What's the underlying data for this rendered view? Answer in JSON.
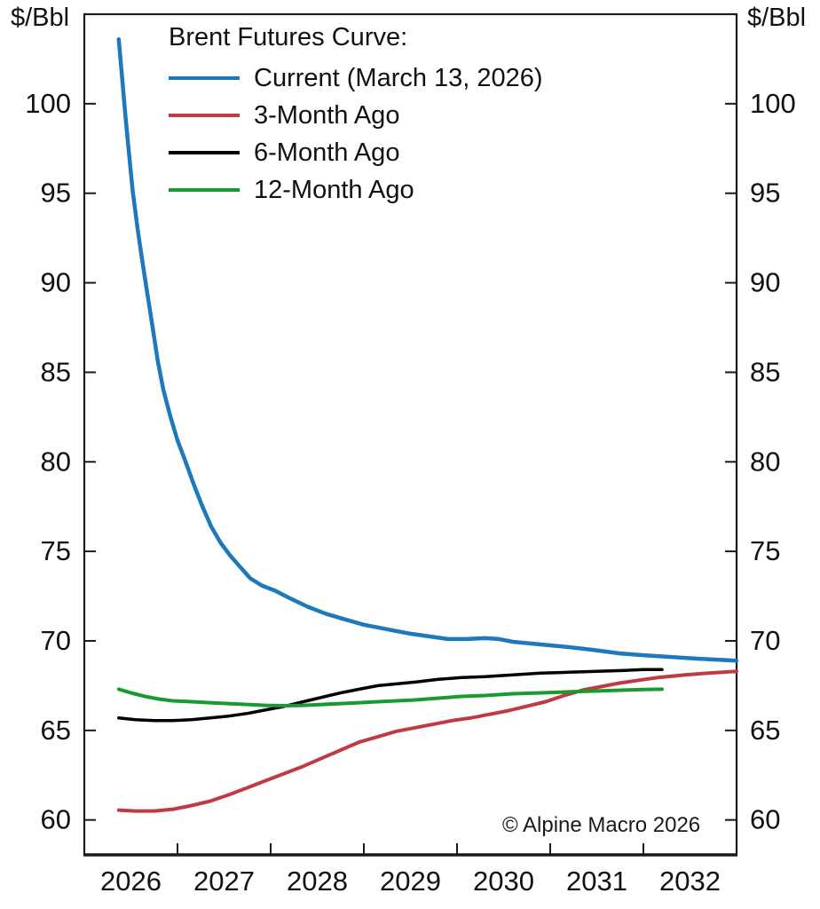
{
  "axes_units": {
    "left": "$/Bbl",
    "right": "$/Bbl"
  },
  "legend": {
    "title": "Brent Futures Curve:"
  },
  "watermark": "© Alpine Macro 2026",
  "chart_data": {
    "type": "line",
    "title": "Brent Futures Curve",
    "xlabel": "",
    "ylabel": "$/Bbl",
    "grid": false,
    "legend_position": "upper-left",
    "frame_color": "#1a1a1a",
    "x_axis": {
      "min": 2026,
      "max": 2033,
      "tick_years": [
        2027,
        2028,
        2029,
        2030,
        2031,
        2032
      ],
      "label_years": [
        "2026",
        "2027",
        "2028",
        "2029",
        "2030",
        "2031",
        "2032"
      ],
      "labels_centered_between_ticks": true
    },
    "y_axis": {
      "min": 58.05,
      "max": 105.0,
      "ticks": [
        60,
        65,
        70,
        75,
        80,
        85,
        90,
        95,
        100
      ],
      "ticks_on_both_sides": true
    },
    "series": [
      {
        "name": "Current (March 13, 2026)",
        "color": "#1d78bc",
        "width": 4.5,
        "points": [
          [
            2026.37,
            103.6
          ],
          [
            2026.4,
            101.8
          ],
          [
            2026.44,
            99.4
          ],
          [
            2026.48,
            97.2
          ],
          [
            2026.52,
            95.1
          ],
          [
            2026.57,
            93.1
          ],
          [
            2026.62,
            91.3
          ],
          [
            2026.67,
            89.6
          ],
          [
            2026.73,
            87.6
          ],
          [
            2026.79,
            85.6
          ],
          [
            2026.85,
            84.0
          ],
          [
            2026.92,
            82.6
          ],
          [
            2027.0,
            81.2
          ],
          [
            2027.08,
            80.1
          ],
          [
            2027.17,
            78.8
          ],
          [
            2027.26,
            77.6
          ],
          [
            2027.36,
            76.4
          ],
          [
            2027.46,
            75.5
          ],
          [
            2027.56,
            74.8
          ],
          [
            2027.66,
            74.2
          ],
          [
            2027.78,
            73.5
          ],
          [
            2027.9,
            73.1
          ],
          [
            2028.05,
            72.8
          ],
          [
            2028.2,
            72.4
          ],
          [
            2028.4,
            71.9
          ],
          [
            2028.6,
            71.5
          ],
          [
            2028.8,
            71.2
          ],
          [
            2029.0,
            70.9
          ],
          [
            2029.15,
            70.75
          ],
          [
            2029.3,
            70.6
          ],
          [
            2029.5,
            70.4
          ],
          [
            2029.7,
            70.25
          ],
          [
            2029.9,
            70.1
          ],
          [
            2030.1,
            70.1
          ],
          [
            2030.3,
            70.15
          ],
          [
            2030.45,
            70.1
          ],
          [
            2030.6,
            69.95
          ],
          [
            2030.8,
            69.85
          ],
          [
            2031.0,
            69.75
          ],
          [
            2031.2,
            69.65
          ],
          [
            2031.45,
            69.5
          ],
          [
            2031.75,
            69.3
          ],
          [
            2032.0,
            69.2
          ],
          [
            2032.3,
            69.1
          ],
          [
            2032.6,
            69.0
          ],
          [
            2033.0,
            68.9
          ]
        ]
      },
      {
        "name": "3-Month Ago",
        "color": "#bf3a44",
        "width": 4,
        "points": [
          [
            2026.37,
            60.55
          ],
          [
            2026.55,
            60.5
          ],
          [
            2026.75,
            60.5
          ],
          [
            2026.95,
            60.6
          ],
          [
            2027.15,
            60.8
          ],
          [
            2027.35,
            61.05
          ],
          [
            2027.55,
            61.4
          ],
          [
            2027.75,
            61.8
          ],
          [
            2027.95,
            62.2
          ],
          [
            2028.15,
            62.6
          ],
          [
            2028.35,
            63.0
          ],
          [
            2028.55,
            63.45
          ],
          [
            2028.75,
            63.9
          ],
          [
            2028.95,
            64.35
          ],
          [
            2029.15,
            64.65
          ],
          [
            2029.35,
            64.95
          ],
          [
            2029.55,
            65.15
          ],
          [
            2029.75,
            65.35
          ],
          [
            2029.95,
            65.55
          ],
          [
            2030.15,
            65.7
          ],
          [
            2030.35,
            65.9
          ],
          [
            2030.55,
            66.1
          ],
          [
            2030.75,
            66.35
          ],
          [
            2030.95,
            66.6
          ],
          [
            2031.15,
            66.95
          ],
          [
            2031.35,
            67.25
          ],
          [
            2031.55,
            67.45
          ],
          [
            2031.75,
            67.65
          ],
          [
            2031.95,
            67.8
          ],
          [
            2032.15,
            67.95
          ],
          [
            2032.45,
            68.1
          ],
          [
            2032.7,
            68.2
          ],
          [
            2033.0,
            68.3
          ]
        ]
      },
      {
        "name": "6-Month Ago",
        "color": "#000000",
        "width": 3.5,
        "points": [
          [
            2026.37,
            65.7
          ],
          [
            2026.55,
            65.6
          ],
          [
            2026.75,
            65.55
          ],
          [
            2026.95,
            65.55
          ],
          [
            2027.15,
            65.6
          ],
          [
            2027.35,
            65.7
          ],
          [
            2027.55,
            65.8
          ],
          [
            2027.75,
            65.95
          ],
          [
            2027.95,
            66.15
          ],
          [
            2028.15,
            66.35
          ],
          [
            2028.35,
            66.6
          ],
          [
            2028.55,
            66.85
          ],
          [
            2028.75,
            67.1
          ],
          [
            2028.95,
            67.3
          ],
          [
            2029.15,
            67.5
          ],
          [
            2029.35,
            67.6
          ],
          [
            2029.55,
            67.7
          ],
          [
            2029.8,
            67.85
          ],
          [
            2030.05,
            67.95
          ],
          [
            2030.3,
            68.0
          ],
          [
            2030.6,
            68.1
          ],
          [
            2030.9,
            68.2
          ],
          [
            2031.2,
            68.25
          ],
          [
            2031.5,
            68.3
          ],
          [
            2031.8,
            68.35
          ],
          [
            2032.0,
            68.4
          ],
          [
            2032.2,
            68.4
          ]
        ]
      },
      {
        "name": "12-Month Ago",
        "color": "#189a2f",
        "width": 4,
        "points": [
          [
            2026.37,
            67.3
          ],
          [
            2026.5,
            67.1
          ],
          [
            2026.65,
            66.9
          ],
          [
            2026.8,
            66.75
          ],
          [
            2026.95,
            66.65
          ],
          [
            2027.15,
            66.6
          ],
          [
            2027.35,
            66.55
          ],
          [
            2027.55,
            66.5
          ],
          [
            2027.75,
            66.45
          ],
          [
            2027.95,
            66.4
          ],
          [
            2028.15,
            66.38
          ],
          [
            2028.35,
            66.4
          ],
          [
            2028.55,
            66.45
          ],
          [
            2028.75,
            66.5
          ],
          [
            2028.95,
            66.55
          ],
          [
            2029.15,
            66.6
          ],
          [
            2029.35,
            66.65
          ],
          [
            2029.55,
            66.7
          ],
          [
            2029.8,
            66.8
          ],
          [
            2030.05,
            66.9
          ],
          [
            2030.3,
            66.95
          ],
          [
            2030.6,
            67.05
          ],
          [
            2030.9,
            67.1
          ],
          [
            2031.2,
            67.15
          ],
          [
            2031.5,
            67.2
          ],
          [
            2031.8,
            67.25
          ],
          [
            2032.0,
            67.28
          ],
          [
            2032.2,
            67.3
          ]
        ]
      }
    ]
  }
}
